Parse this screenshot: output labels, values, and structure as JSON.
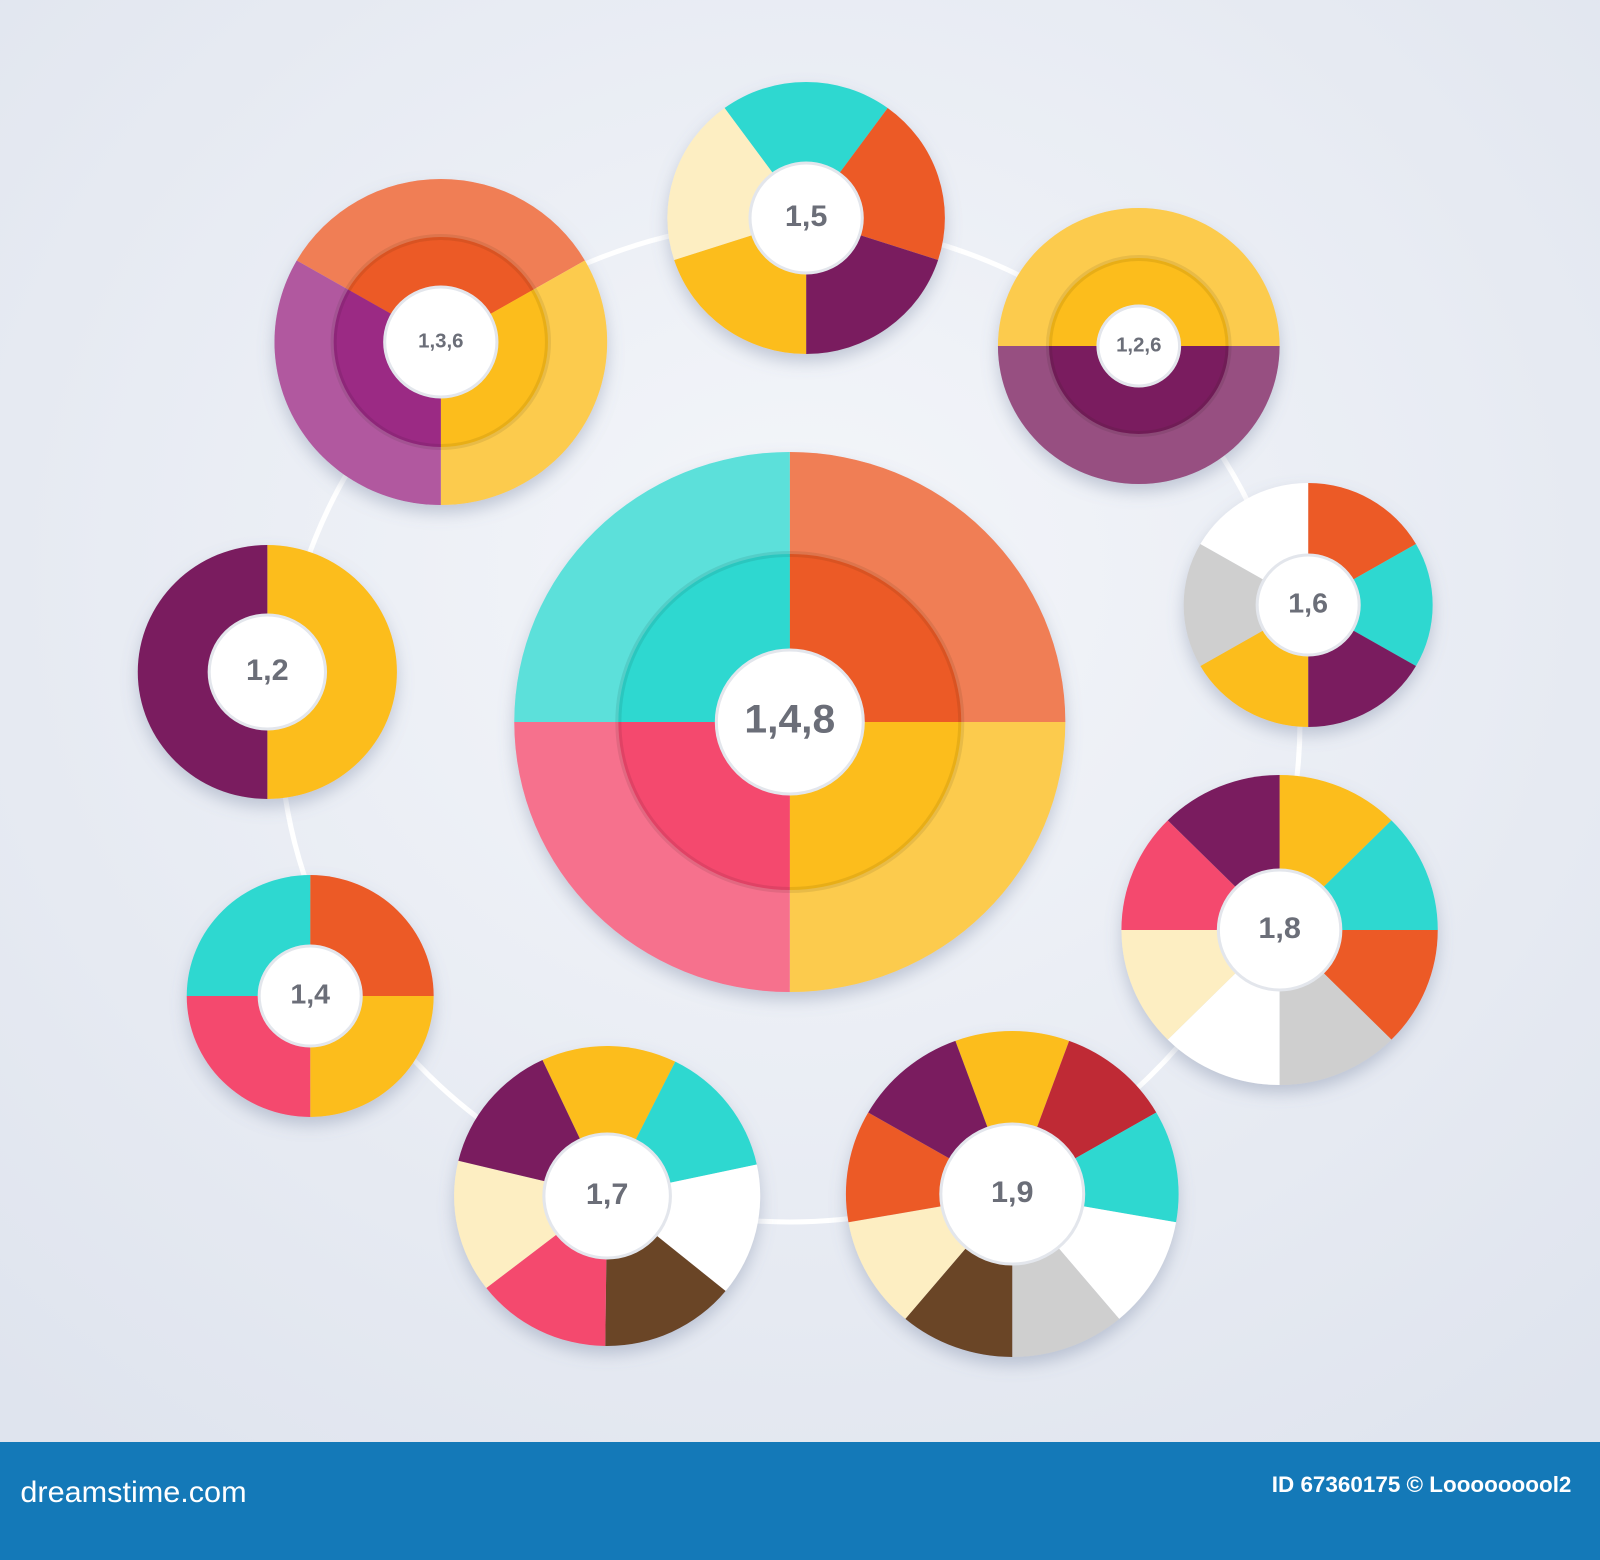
{
  "nodes": [
    {
      "label": "1,4,8"
    },
    {
      "label": "1,5"
    },
    {
      "label": "1,3,6"
    },
    {
      "label": "1,2,6"
    },
    {
      "label": "1,2"
    },
    {
      "label": "1,6"
    },
    {
      "label": "1,8"
    },
    {
      "label": "1,4"
    },
    {
      "label": "1,7"
    },
    {
      "label": "1,9"
    }
  ],
  "footer": {
    "site": "dreamstime.com",
    "id": "ID 67360175 © Looooooool2"
  }
}
